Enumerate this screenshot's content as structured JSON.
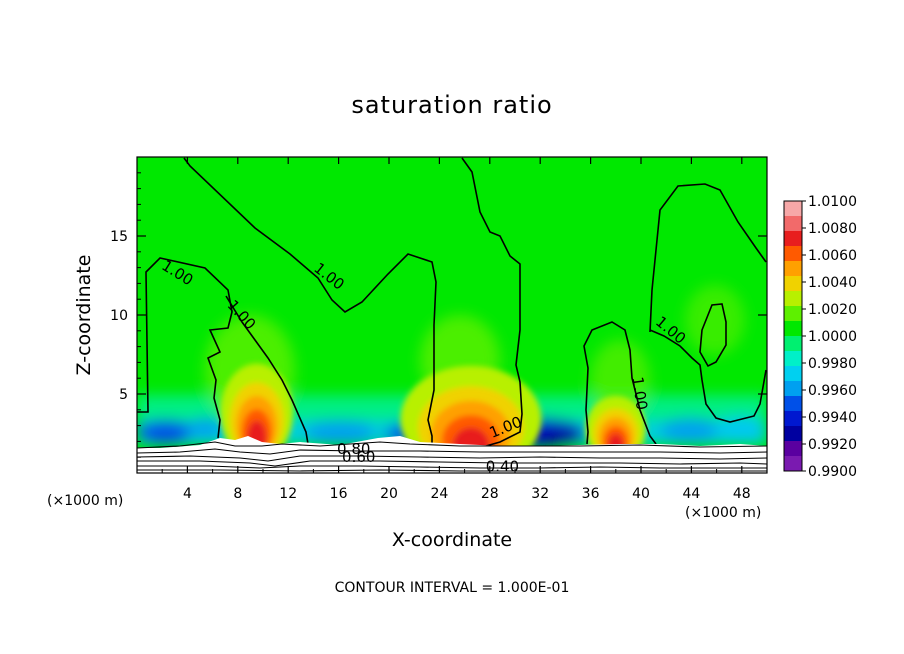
{
  "chart_data": {
    "type": "heatmap",
    "title": "saturation ratio",
    "xlabel": "X-coordinate",
    "ylabel": "Z-coordinate",
    "x_unit_label": "(×1000 m)",
    "z_unit_label": "(×1000 m)",
    "xlim": [
      0,
      50
    ],
    "ylim": [
      0,
      20
    ],
    "x_ticks": [
      {
        "value": 4,
        "label": "4"
      },
      {
        "value": 8,
        "label": "8"
      },
      {
        "value": 12,
        "label": "12"
      },
      {
        "value": 16,
        "label": "16"
      },
      {
        "value": 20,
        "label": "20"
      },
      {
        "value": 24,
        "label": "24"
      },
      {
        "value": 28,
        "label": "28"
      },
      {
        "value": 32,
        "label": "32"
      },
      {
        "value": 36,
        "label": "36"
      },
      {
        "value": 40,
        "label": "40"
      },
      {
        "value": 44,
        "label": "44"
      },
      {
        "value": 48,
        "label": "48"
      }
    ],
    "y_ticks": [
      {
        "value": 5,
        "label": "5"
      },
      {
        "value": 10,
        "label": "10"
      },
      {
        "value": 15,
        "label": "15"
      }
    ],
    "colorbar": {
      "min": 0.99,
      "max": 1.01,
      "labels": [
        "1.0100",
        "1.0080",
        "1.0060",
        "1.0040",
        "1.0020",
        "1.0000",
        "0.9980",
        "0.9960",
        "0.9940",
        "0.9920",
        "0.9900"
      ],
      "colors": [
        "#f7a8a8",
        "#f26a6a",
        "#e81e1e",
        "#ff5a00",
        "#ffa000",
        "#f0d200",
        "#b8f000",
        "#5ef000",
        "#00e800",
        "#00f070",
        "#00f0c8",
        "#00d0f0",
        "#00a0f0",
        "#0050e8",
        "#0018d0",
        "#0000a0",
        "#5a00a0",
        "#7a1ab0"
      ]
    },
    "contour_interval_text": "CONTOUR INTERVAL = 1.000E-01",
    "contour_labels": [
      {
        "text": "1.00",
        "x": 3.0,
        "z": 12.4,
        "angle": 32
      },
      {
        "text": "1.00",
        "x": 8.0,
        "z": 9.8,
        "angle": 48
      },
      {
        "text": "1.00",
        "x": 15.0,
        "z": 12.2,
        "angle": 38
      },
      {
        "text": "1.00",
        "x": 42.1,
        "z": 8.8,
        "angle": 40
      },
      {
        "text": "1.00",
        "x": 39.5,
        "z": 5.0,
        "angle": 82
      },
      {
        "text": "1.00",
        "x": 29.4,
        "z": 2.6,
        "angle": -22
      },
      {
        "text": "0.80",
        "x": 17.2,
        "z": 1.2,
        "angle": 0
      },
      {
        "text": "0.60",
        "x": 17.6,
        "z": 0.7,
        "angle": 0
      },
      {
        "text": "0.40",
        "x": 29.0,
        "z": 0.1,
        "angle": 0
      }
    ],
    "moist_hotspots": [
      {
        "x": 9.5,
        "z": 3.8,
        "w": 1.8,
        "h": 2.4
      },
      {
        "x": 26.5,
        "z": 3.4,
        "w": 3.5,
        "h": 2.6
      },
      {
        "x": 38.0,
        "z": 2.8,
        "w": 1.5,
        "h": 1.6
      }
    ]
  }
}
